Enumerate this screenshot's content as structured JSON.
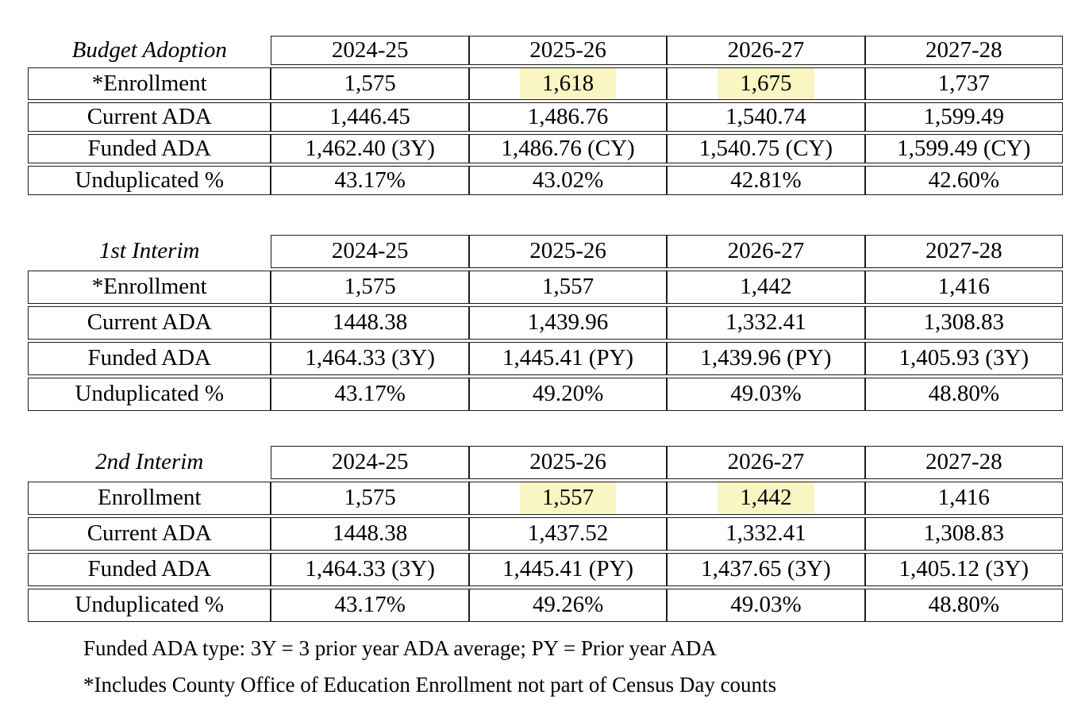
{
  "highlight_color": "#faf6c3",
  "tables": [
    {
      "title": "Budget Adoption",
      "columns": [
        "2024-25",
        "2025-26",
        "2026-27",
        "2027-28"
      ],
      "rows": [
        {
          "label": "*Enrollment",
          "values": [
            "1,575",
            "1,618",
            "1,675",
            "1,737"
          ],
          "highlights": [
            false,
            true,
            true,
            false
          ]
        },
        {
          "label": "Current ADA",
          "values": [
            "1,446.45",
            "1,486.76",
            "1,540.74",
            "1,599.49"
          ]
        },
        {
          "label": "Funded ADA",
          "values": [
            "1,462.40 (3Y)",
            "1,486.76 (CY)",
            "1,540.75 (CY)",
            "1,599.49 (CY)"
          ]
        },
        {
          "label": "Unduplicated %",
          "values": [
            "43.17%",
            "43.02%",
            "42.81%",
            "42.60%"
          ]
        }
      ]
    },
    {
      "title": "1st Interim",
      "columns": [
        "2024-25",
        "2025-26",
        "2026-27",
        "2027-28"
      ],
      "rows": [
        {
          "label": "*Enrollment",
          "values": [
            "1,575",
            "1,557",
            "1,442",
            "1,416"
          ],
          "highlights": [
            false,
            false,
            false,
            false
          ]
        },
        {
          "label": "Current ADA",
          "values": [
            "1448.38",
            "1,439.96",
            "1,332.41",
            "1,308.83"
          ]
        },
        {
          "label": "Funded ADA",
          "values": [
            "1,464.33 (3Y)",
            "1,445.41 (PY)",
            "1,439.96 (PY)",
            "1,405.93 (3Y)"
          ]
        },
        {
          "label": "Unduplicated %",
          "values": [
            "43.17%",
            "49.20%",
            "49.03%",
            "48.80%"
          ]
        }
      ]
    },
    {
      "title": "2nd Interim",
      "columns": [
        "2024-25",
        "2025-26",
        "2026-27",
        "2027-28"
      ],
      "rows": [
        {
          "label": "Enrollment",
          "values": [
            "1,575",
            "1,557",
            "1,442",
            "1,416"
          ],
          "highlights": [
            false,
            true,
            true,
            false
          ]
        },
        {
          "label": "Current ADA",
          "values": [
            "1448.38",
            "1,437.52",
            "1,332.41",
            "1,308.83"
          ]
        },
        {
          "label": "Funded ADA",
          "values": [
            "1,464.33 (3Y)",
            "1,445.41 (PY)",
            "1,437.65 (3Y)",
            "1,405.12 (3Y)"
          ]
        },
        {
          "label": "Unduplicated %",
          "values": [
            "43.17%",
            "49.26%",
            "49.03%",
            "48.80%"
          ]
        }
      ]
    }
  ],
  "notes": [
    "Funded ADA type: 3Y = 3 prior year ADA average; PY = Prior year ADA",
    "*Includes County Office of Education Enrollment not part of Census Day counts"
  ]
}
